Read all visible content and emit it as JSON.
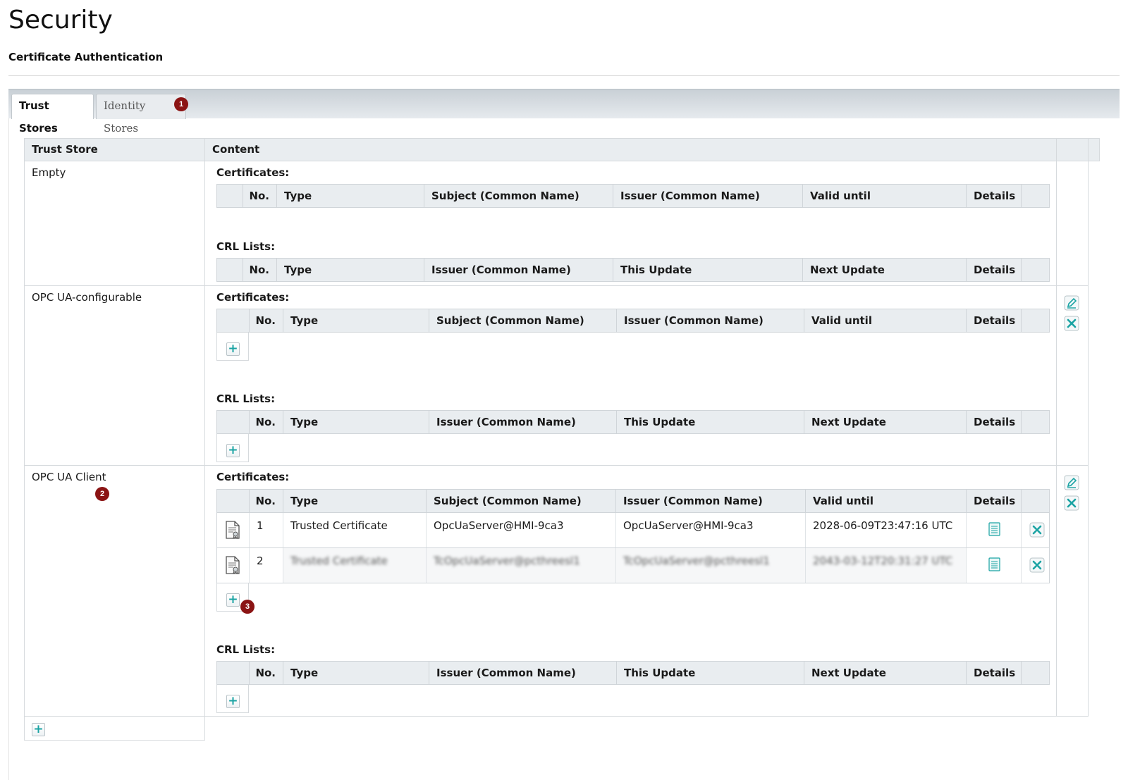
{
  "page": {
    "title": "Security",
    "subtitle": "Certificate Authentication"
  },
  "tabs": [
    {
      "label": "Trust Stores",
      "active": true
    },
    {
      "label": "Identity Stores",
      "active": false
    }
  ],
  "callouts": [
    "1",
    "2",
    "3"
  ],
  "outer_table": {
    "headers": [
      "Trust Store",
      "Content"
    ]
  },
  "labels": {
    "certificates": "Certificates:",
    "crl_lists": "CRL Lists:"
  },
  "cert_headers": [
    "No.",
    "Type",
    "Subject (Common Name)",
    "Issuer (Common Name)",
    "Valid until",
    "Details"
  ],
  "crl_headers": [
    "No.",
    "Type",
    "Issuer (Common Name)",
    "This Update",
    "Next Update",
    "Details"
  ],
  "stores": [
    {
      "name": "Empty",
      "editable": false
    },
    {
      "name": "OPC UA-configurable",
      "editable": true
    },
    {
      "name": "OPC UA Client",
      "editable": true,
      "certificates": [
        {
          "no": "1",
          "type": "Trusted Certificate",
          "subject": "OpcUaServer@HMI-9ca3",
          "issuer": "OpcUaServer@HMI-9ca3",
          "valid_until": "2028-06-09T23:47:16 UTC"
        },
        {
          "no": "2",
          "type": "Trusted Certificate",
          "subject": "TcOpcUaServer@pcthreesl1",
          "issuer": "TcOpcUaServer@pcthreesl1",
          "valid_until": "2043-03-12T20:31:27 UTC"
        }
      ]
    }
  ],
  "icons": {
    "edit": "pencil-icon",
    "delete": "close-icon",
    "add": "plus-icon",
    "details": "document-list-icon",
    "certificate": "certificate-icon"
  },
  "colors": {
    "badge": "#8b1414",
    "accent": "#1aa3a3",
    "header_bg": "#e9edf0"
  }
}
